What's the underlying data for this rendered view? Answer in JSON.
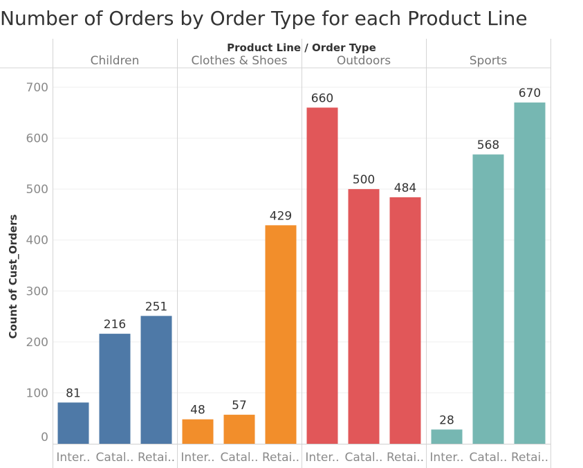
{
  "title": "Number of Orders by Order Type for each Product Line",
  "chart_data": {
    "type": "bar",
    "header_label": "Product Line / Order Type",
    "ylabel": "Count of Cust_Orders",
    "ylim": [
      0,
      700
    ],
    "yticks": [
      0,
      100,
      200,
      300,
      400,
      500,
      600,
      700
    ],
    "grid": true,
    "groups": [
      {
        "name": "Children",
        "color": "#4e79a7",
        "categories": [
          "Inter..",
          "Catal..",
          "Retai.."
        ],
        "values": [
          81,
          216,
          251
        ]
      },
      {
        "name": "Clothes & Shoes",
        "color": "#f28e2b",
        "categories": [
          "Inter..",
          "Catal..",
          "Retai.."
        ],
        "values": [
          48,
          57,
          429
        ]
      },
      {
        "name": "Outdoors",
        "color": "#e15759",
        "categories": [
          "Inter..",
          "Catal..",
          "Retai.."
        ],
        "values": [
          660,
          500,
          484
        ]
      },
      {
        "name": "Sports",
        "color": "#76b7b2",
        "categories": [
          "Inter..",
          "Catal..",
          "Retai.."
        ],
        "values": [
          28,
          568,
          670
        ]
      }
    ]
  }
}
